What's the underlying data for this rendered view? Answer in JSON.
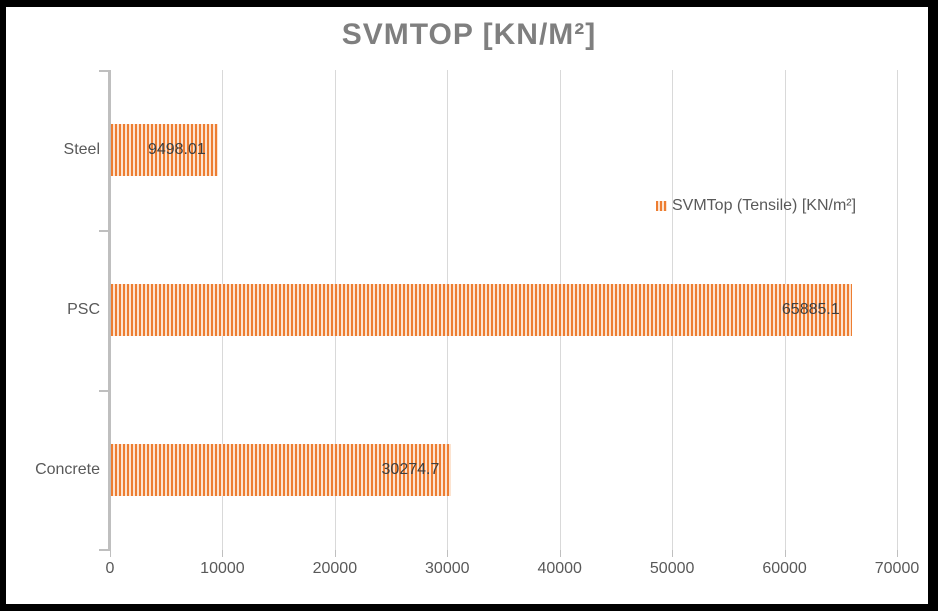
{
  "chart_data": {
    "type": "bar",
    "orientation": "horizontal",
    "title": "SVMTOP [KN/M²]",
    "categories": [
      "Steel",
      "PSC",
      "Concrete"
    ],
    "series": [
      {
        "name": "SVMTop (Tensile) [KN/m²]",
        "values": [
          9498.01,
          65885.1,
          30274.7
        ],
        "value_labels": [
          "9498.01",
          "65885.1",
          "30274.7"
        ]
      }
    ],
    "x_axis": {
      "min": 0,
      "max": 70000,
      "tick_step": 10000,
      "tick_labels": [
        "0",
        "10000",
        "20000",
        "30000",
        "40000",
        "50000",
        "60000",
        "70000"
      ]
    },
    "ylabel": "",
    "xlabel": "",
    "grid": "vertical-major-on",
    "legend_position": "middle-right"
  },
  "colors": {
    "bar_orange": "#ED7D31",
    "bar_stripe_light": "#FCE3D0",
    "title_gray": "#7F7F7F",
    "label_gray": "#595959",
    "data_label_gray": "#3F3F3F",
    "gridline_gray": "#D9D9D9",
    "axis_gray": "#BFBFBF",
    "frame_black": "#000000",
    "background_white": "#FFFFFF"
  }
}
